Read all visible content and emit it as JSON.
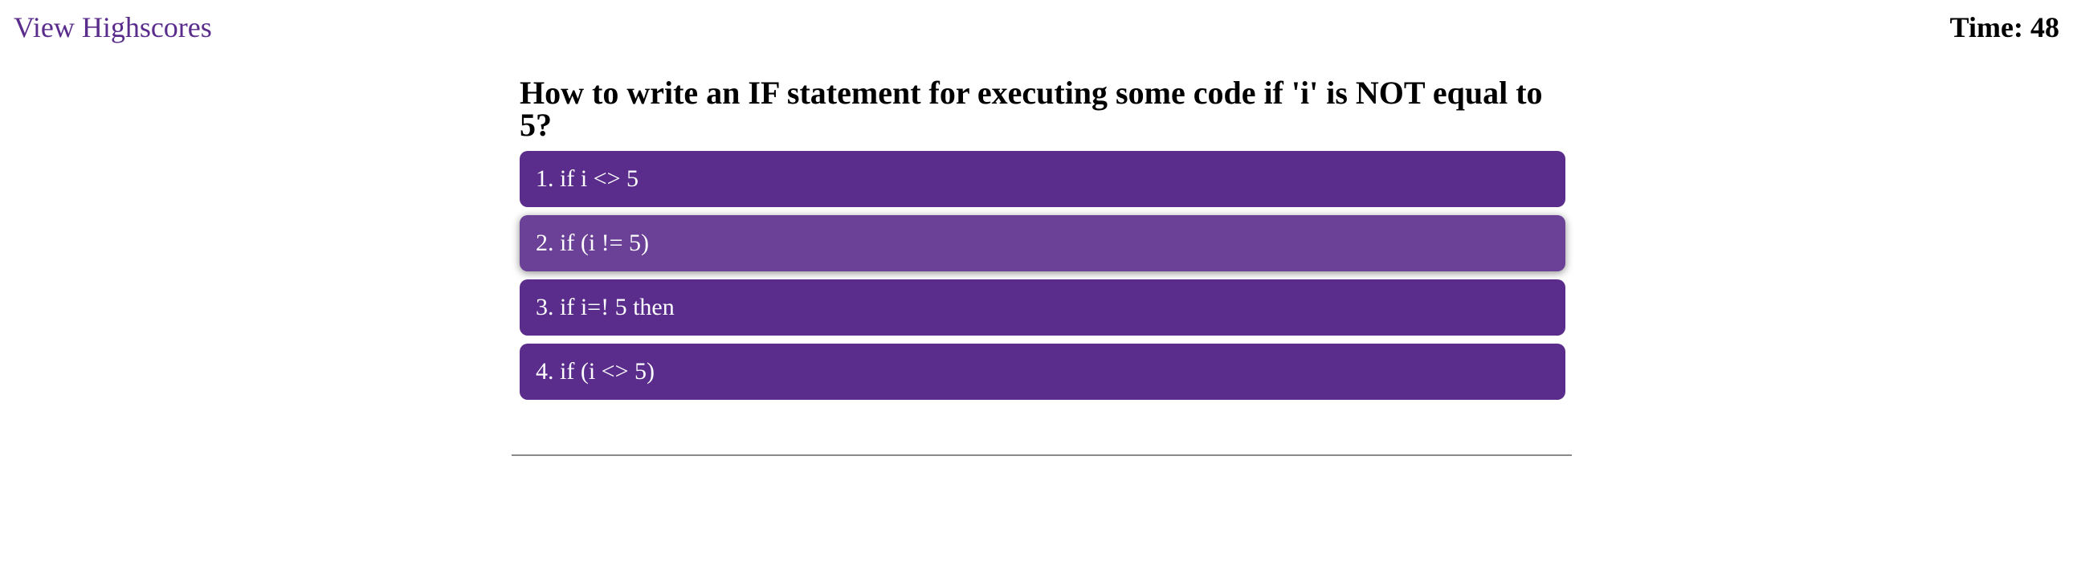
{
  "header": {
    "highscores_label": "View Highscores",
    "timer_label": "Time:",
    "timer_value": "48"
  },
  "quiz": {
    "question": "How to write an IF statement for executing some code if 'i' is NOT equal to 5?",
    "choices": [
      {
        "label": "1. if i <> 5"
      },
      {
        "label": "2. if (i != 5)"
      },
      {
        "label": "3. if i=! 5 then"
      },
      {
        "label": "4. if (i <> 5)"
      }
    ]
  },
  "colors": {
    "accent": "#5a2d8c",
    "accent_hover": "#6b4097",
    "divider": "#8a8a8a"
  }
}
